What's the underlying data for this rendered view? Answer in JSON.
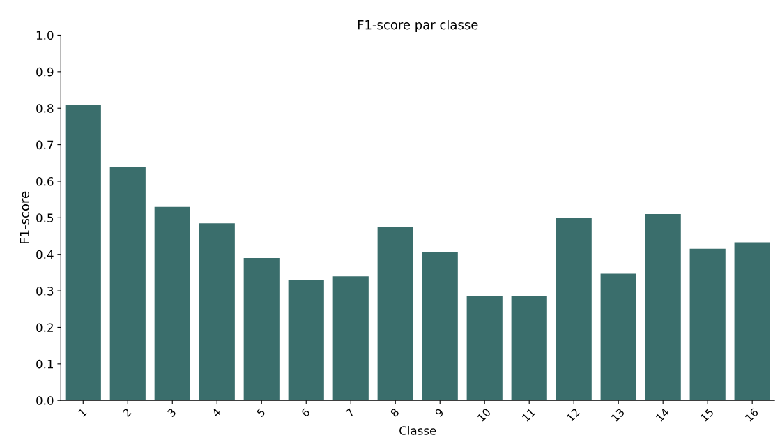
{
  "chart_data": {
    "type": "bar",
    "title": "F1-score par classe",
    "xlabel": "Classe",
    "ylabel": "F1-score",
    "categories": [
      "1",
      "2",
      "3",
      "4",
      "5",
      "6",
      "7",
      "8",
      "9",
      "10",
      "11",
      "12",
      "13",
      "14",
      "15",
      "16"
    ],
    "values": [
      0.81,
      0.64,
      0.53,
      0.485,
      0.39,
      0.33,
      0.34,
      0.475,
      0.405,
      0.285,
      0.285,
      0.5,
      0.347,
      0.51,
      0.415,
      0.433
    ],
    "color": "#3a6e6c",
    "ylim": [
      0,
      1.0
    ],
    "yticks": [
      {
        "value": 0,
        "label": "0.0"
      },
      {
        "value": 0.1,
        "label": "0.1"
      },
      {
        "value": 0.2,
        "label": "0.2"
      },
      {
        "value": 0.3,
        "label": "0.3"
      },
      {
        "value": 0.4,
        "label": "0.4"
      },
      {
        "value": 0.5,
        "label": "0.5"
      },
      {
        "value": 0.6,
        "label": "0.6"
      },
      {
        "value": 0.7,
        "label": "0.7"
      },
      {
        "value": 0.8,
        "label": "0.8"
      },
      {
        "value": 0.9,
        "label": "0.9"
      },
      {
        "value": 1.0,
        "label": "1.0"
      }
    ],
    "grid": false
  }
}
